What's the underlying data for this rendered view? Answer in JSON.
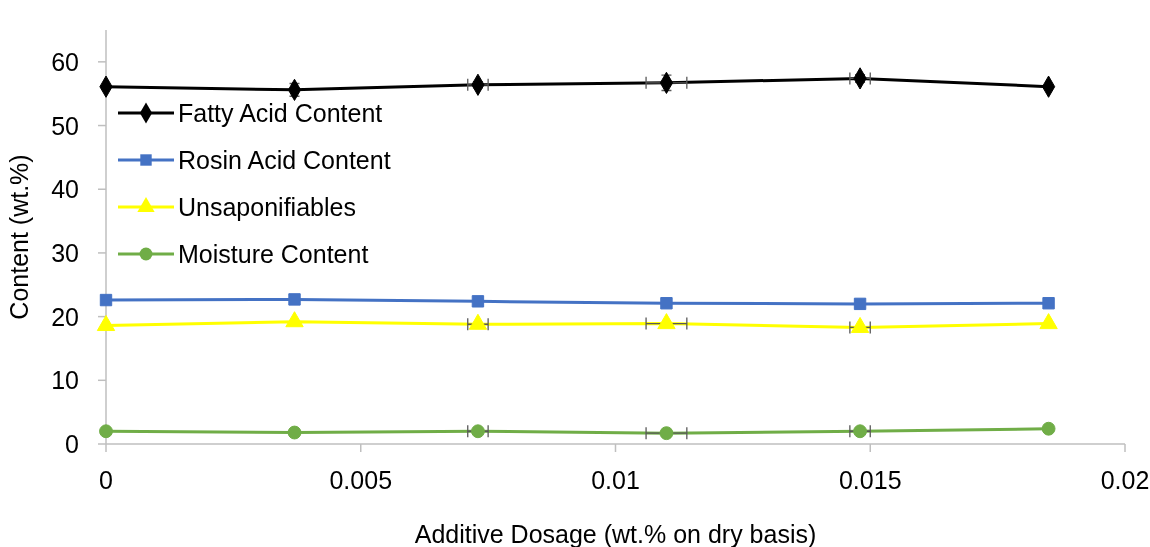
{
  "chart_data": {
    "type": "line",
    "xlabel": "Additive Dosage (wt.% on dry basis)",
    "ylabel": "Content (wt.%)",
    "x": [
      0,
      0.0037,
      0.0073,
      0.011,
      0.0148,
      0.0185
    ],
    "xlim": [
      0,
      0.02
    ],
    "xticks": [
      0,
      0.005,
      0.01,
      0.015,
      0.02
    ],
    "ylim": [
      0,
      65
    ],
    "yticks": [
      0,
      10,
      20,
      30,
      40,
      50,
      60
    ],
    "grid": false,
    "legend": "left",
    "line_style": "solid",
    "series": [
      {
        "name": "Fatty Acid Content",
        "color": "#000000",
        "marker": "diamond",
        "values": [
          56.1,
          55.6,
          56.4,
          56.7,
          57.4,
          56.1
        ],
        "errors": [
          null,
          1,
          0.5,
          1.2,
          0.6,
          null
        ],
        "xerrors": [
          null,
          null,
          0.0002,
          0.0004,
          0.0002,
          null
        ]
      },
      {
        "name": "Rosin Acid Content",
        "color": "#4472c4",
        "marker": "square",
        "values": [
          22.6,
          22.7,
          22.4,
          22.1,
          22.0,
          22.1
        ]
      },
      {
        "name": "Unsaponifiables",
        "color": "#ffff00",
        "marker": "triangle",
        "values": [
          18.6,
          19.2,
          18.8,
          18.9,
          18.3,
          18.9
        ],
        "xerrors": [
          null,
          null,
          0.0002,
          0.0004,
          0.0002,
          null
        ]
      },
      {
        "name": "Moisture Content",
        "color": "#70ad47",
        "marker": "circle",
        "values": [
          2.0,
          1.8,
          2.0,
          1.7,
          2.0,
          2.4
        ],
        "xerrors": [
          null,
          null,
          0.0002,
          0.0004,
          0.0002,
          null
        ]
      }
    ]
  }
}
